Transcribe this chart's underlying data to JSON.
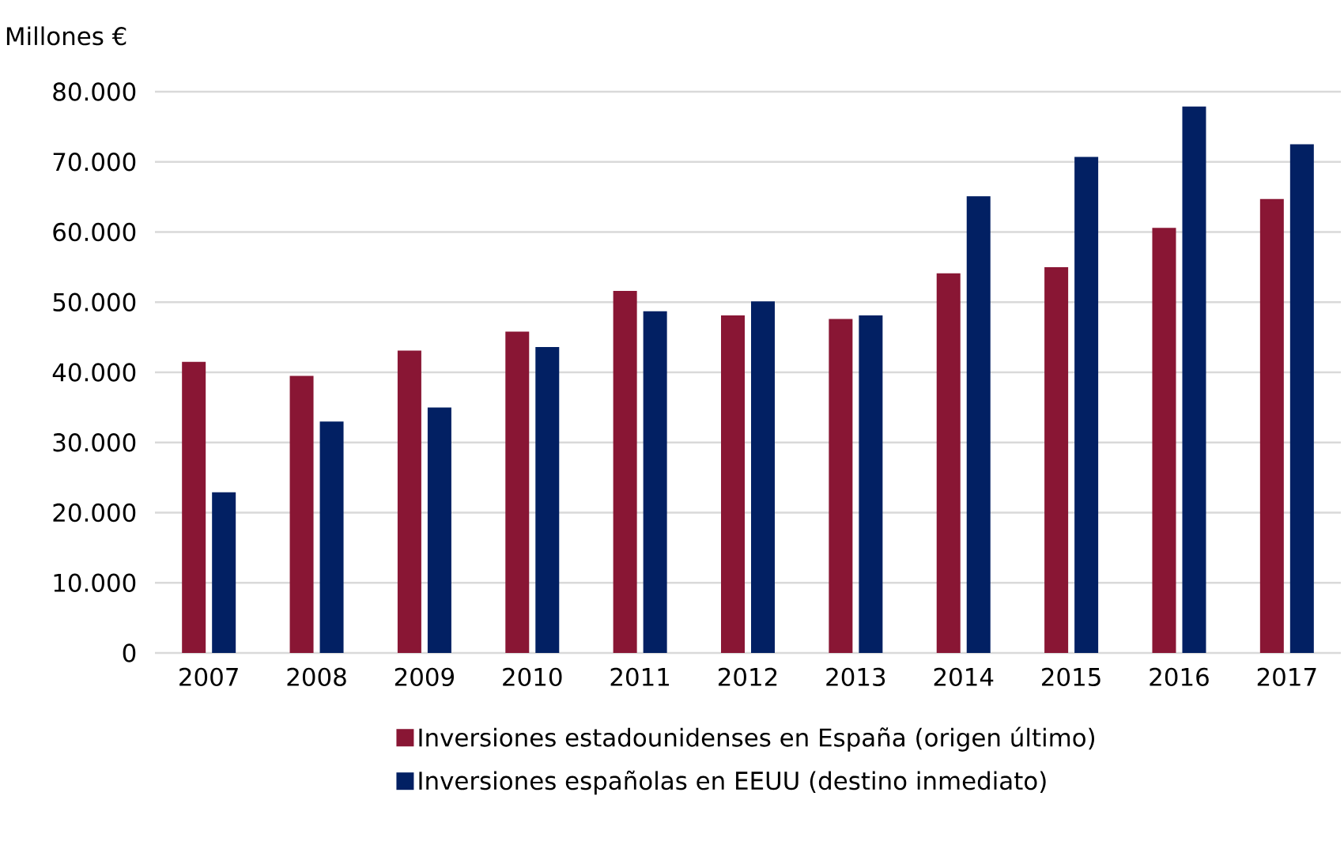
{
  "chart_data": {
    "type": "bar",
    "ylabel": "Millones €",
    "categories": [
      "2007",
      "2008",
      "2009",
      "2010",
      "2011",
      "2012",
      "2013",
      "2014",
      "2015",
      "2016",
      "2017"
    ],
    "series": [
      {
        "name": "Inversiones estadounidenses en España (origen último)",
        "color": "#891634",
        "values": [
          41500,
          39500,
          43100,
          45800,
          51600,
          48100,
          47600,
          54100,
          55000,
          60600,
          64700
        ]
      },
      {
        "name": "Inversiones españolas en EEUU (destino inmediato)",
        "color": "#022063",
        "values": [
          22900,
          33000,
          35000,
          43600,
          48700,
          50100,
          48100,
          65100,
          70700,
          77900,
          72500
        ]
      }
    ],
    "ylim": [
      0,
      80000
    ],
    "yticks": [
      0,
      {
        "value": 10000,
        "label": "10.000"
      },
      {
        "value": 20000,
        "label": "20.000"
      },
      {
        "value": 30000,
        "label": "30.000"
      },
      {
        "value": 40000,
        "label": "40.000"
      },
      {
        "value": 50000,
        "label": "50.000"
      },
      {
        "value": 60000,
        "label": "60.000"
      },
      {
        "value": 70000,
        "label": "70.000"
      },
      {
        "value": 80000,
        "label": "80.000"
      }
    ],
    "grid": "y",
    "legend": "bottom"
  }
}
